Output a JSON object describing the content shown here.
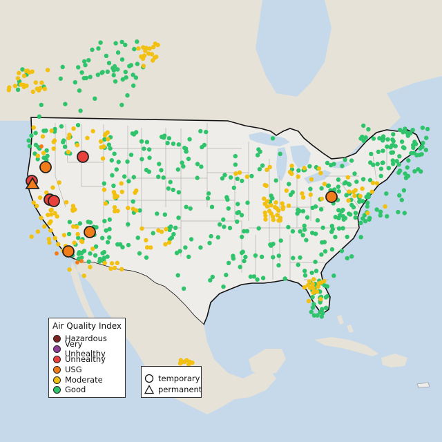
{
  "map": {
    "colors": {
      "ocean": "#c6d9ea",
      "land_us": "#efedea",
      "land_other": "#e6e2d8",
      "border": "#111111",
      "state_line": "#b5b2ac"
    },
    "aqi_colors": {
      "hazardous": "#7e2222",
      "very_unhealthy": "#8f3f97",
      "unhealthy": "#e8403a",
      "usg": "#f07d1a",
      "moderate": "#f2c010",
      "good": "#2fc36b"
    }
  },
  "legend": {
    "title": "Air Quality Index",
    "items": [
      {
        "label": "Hazardous",
        "color": "#7e2222"
      },
      {
        "label": "Very Unhealthy",
        "color": "#8f3f97"
      },
      {
        "label": "Unhealthy",
        "color": "#e8403a"
      },
      {
        "label": "USG",
        "color": "#f07d1a"
      },
      {
        "label": "Moderate",
        "color": "#f2c010"
      },
      {
        "label": "Good",
        "color": "#2fc36b"
      }
    ]
  },
  "monitor_type_legend": {
    "items": [
      {
        "label": "temporary",
        "symbol": "circle"
      },
      {
        "label": "permanent",
        "symbol": "triangle"
      }
    ]
  }
}
